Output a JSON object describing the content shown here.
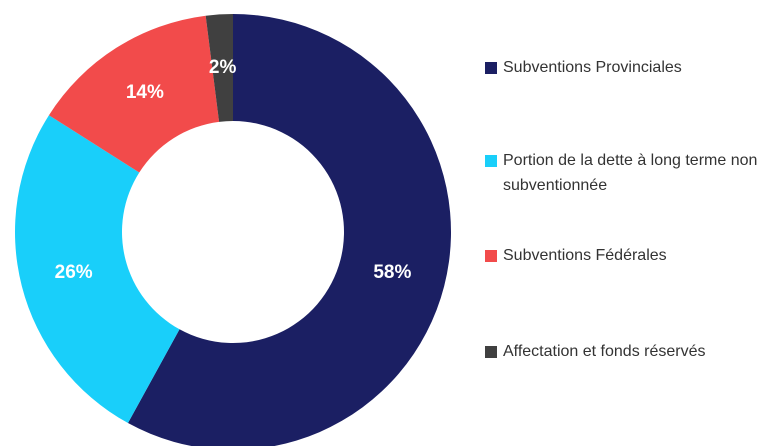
{
  "chart_data": {
    "type": "donut",
    "categories": [
      "Subventions Provinciales",
      "Portion de la dette à long terme non subventionnée",
      "Subventions Fédérales",
      "Affectation et fonds réservés"
    ],
    "values": [
      58,
      26,
      14,
      2
    ],
    "value_labels": [
      "58%",
      "26%",
      "14%",
      "2%"
    ],
    "colors": [
      "#1b1f63",
      "#19cffa",
      "#f24b4b",
      "#404040"
    ],
    "legend": "right"
  }
}
